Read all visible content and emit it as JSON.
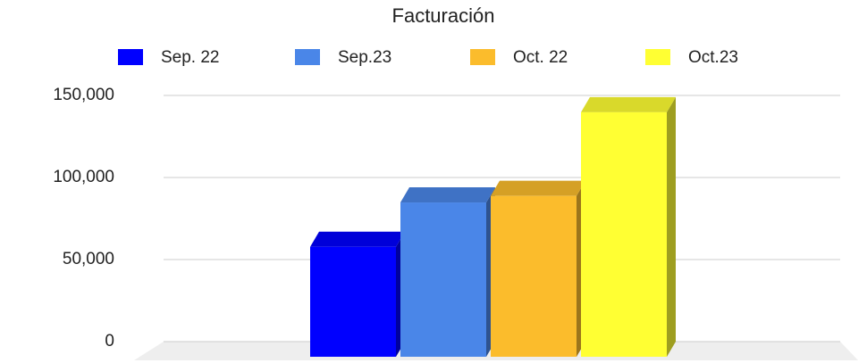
{
  "chart_data": {
    "type": "bar3d",
    "title": "Facturación",
    "categories": [
      null
    ],
    "series": [
      {
        "name": "Sep. 22",
        "color": "#0000ff",
        "values": [
          67000
        ]
      },
      {
        "name": "Sep.23",
        "color": "#4a86e8",
        "values": [
          94000
        ]
      },
      {
        "name": "Oct. 22",
        "color": "#fbbc2c",
        "values": [
          98000
        ]
      },
      {
        "name": "Oct.23",
        "color": "#ffff33",
        "values": [
          149000
        ]
      }
    ],
    "ylim": [
      0,
      150000
    ],
    "yticks": [
      0,
      {
        "value": 50000,
        "label": "50,000"
      },
      {
        "value": 100000,
        "label": "100,000"
      },
      {
        "value": 150000,
        "label": "150,000"
      }
    ],
    "grid": true,
    "legend": "top"
  }
}
